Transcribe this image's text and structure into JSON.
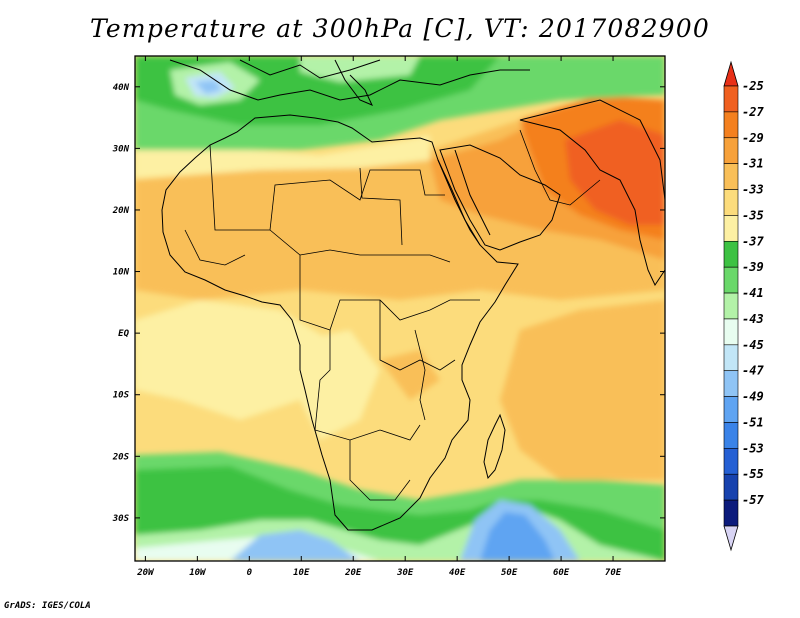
{
  "title": "Temperature at 300hPa [C], VT: 2017082900",
  "credit": "GrADS: IGES/COLA",
  "map": {
    "region": "Africa and Middle East",
    "projection": "lat-lon",
    "lon_range": [
      -22,
      80
    ],
    "lat_range": [
      -37,
      45
    ],
    "lon_ticks": [
      {
        "value": -20,
        "label": "20W"
      },
      {
        "value": -10,
        "label": "10W"
      },
      {
        "value": 0,
        "label": "0"
      },
      {
        "value": 10,
        "label": "10E"
      },
      {
        "value": 20,
        "label": "20E"
      },
      {
        "value": 30,
        "label": "30E"
      },
      {
        "value": 40,
        "label": "40E"
      },
      {
        "value": 50,
        "label": "50E"
      },
      {
        "value": 60,
        "label": "60E"
      },
      {
        "value": 70,
        "label": "70E"
      }
    ],
    "lat_ticks": [
      {
        "value": 40,
        "label": "40N"
      },
      {
        "value": 30,
        "label": "30N"
      },
      {
        "value": 20,
        "label": "20N"
      },
      {
        "value": 10,
        "label": "10N"
      },
      {
        "value": 0,
        "label": "EQ"
      },
      {
        "value": -10,
        "label": "10S"
      },
      {
        "value": -20,
        "label": "20S"
      },
      {
        "value": -30,
        "label": "30S"
      }
    ]
  },
  "colorbar": {
    "levels": [
      {
        "label": "-25",
        "color": "#f06020"
      },
      {
        "label": "-27",
        "color": "#f4801f"
      },
      {
        "label": "-29",
        "color": "#f7a13a"
      },
      {
        "label": "-31",
        "color": "#f9bf58"
      },
      {
        "label": "-33",
        "color": "#fcdc7c"
      },
      {
        "label": "-35",
        "color": "#fdf0a3"
      },
      {
        "label": "-37",
        "color": "#3dc243"
      },
      {
        "label": "-39",
        "color": "#6ad86a"
      },
      {
        "label": "-41",
        "color": "#b3f2a8"
      },
      {
        "label": "-43",
        "color": "#e8fdf0"
      },
      {
        "label": "-45",
        "color": "#c2e6f7"
      },
      {
        "label": "-47",
        "color": "#8fc4f5"
      },
      {
        "label": "-49",
        "color": "#5fa4f2"
      },
      {
        "label": "-51",
        "color": "#3a83e8"
      },
      {
        "label": "-53",
        "color": "#2560d4"
      },
      {
        "label": "-55",
        "color": "#1742ae"
      },
      {
        "label": "-57",
        "color": "#0c1b7c"
      }
    ],
    "top_arrow_color": "#e83018",
    "bottom_arrow_color": "#d8d4f4"
  }
}
